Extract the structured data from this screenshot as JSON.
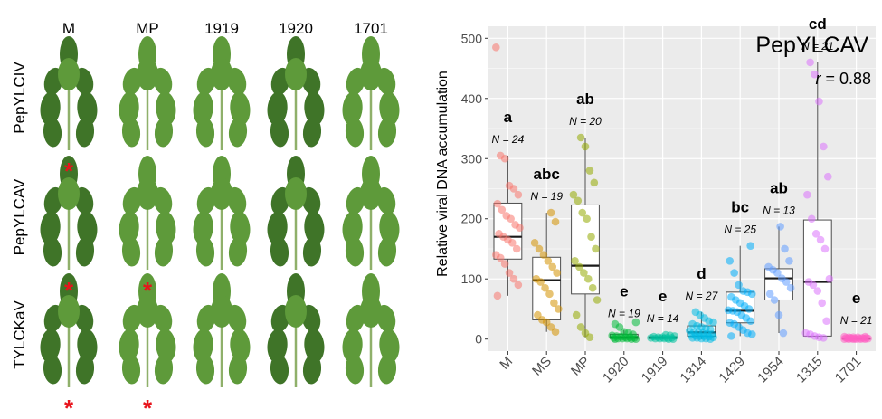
{
  "leaf_panel": {
    "column_labels": [
      "M",
      "MP",
      "1919",
      "1920",
      "1701"
    ],
    "row_labels": [
      "PepYLCIV",
      "PepYLCAV",
      "TYLCKaV"
    ],
    "symptom_marker": "*",
    "symptom_marks": [
      {
        "row": 0,
        "col": 0
      },
      {
        "row": 1,
        "col": 0
      },
      {
        "row": 1,
        "col": 1
      },
      {
        "row": 2,
        "col": 0
      },
      {
        "row": 2,
        "col": 1
      }
    ],
    "colors": {
      "leaf": "#5e9a3a",
      "leaf_dark": "#3f7428",
      "stem": "#8fb06a",
      "marker": "#e8141c"
    }
  },
  "chart_data": {
    "type": "box",
    "title": "PepYLCAV",
    "annotation": "r = 0.88",
    "annotation_var": "r",
    "annotation_rest": " = 0.88",
    "ylabel": "Relative viral DNA accumulation",
    "xlabel": "",
    "ylim": [
      -20,
      520
    ],
    "yticks": [
      0,
      100,
      200,
      300,
      400,
      500
    ],
    "grid": true,
    "background": "#ebebeb",
    "groups": [
      {
        "label": "M",
        "color": "#f8766d",
        "letter": "a",
        "n": "N = 24",
        "stats": {
          "min": 72,
          "q1": 133,
          "median": 170,
          "q3": 226,
          "max": 305
        },
        "points": [
          485,
          305,
          300,
          255,
          250,
          240,
          225,
          215,
          205,
          200,
          190,
          185,
          175,
          170,
          165,
          160,
          150,
          140,
          135,
          125,
          110,
          100,
          90,
          72
        ]
      },
      {
        "label": "MS",
        "color": "#d39200",
        "letter": "abc",
        "n": "N = 19",
        "stats": {
          "min": 12,
          "q1": 32,
          "median": 98,
          "q3": 136,
          "max": 210
        },
        "points": [
          210,
          195,
          160,
          150,
          140,
          130,
          120,
          110,
          100,
          95,
          85,
          75,
          60,
          50,
          40,
          32,
          28,
          20,
          12
        ]
      },
      {
        "label": "MP",
        "color": "#93aa00",
        "letter": "ab",
        "n": "N = 20",
        "stats": {
          "min": 3,
          "q1": 75,
          "median": 122,
          "q3": 223,
          "max": 335
        },
        "points": [
          335,
          320,
          280,
          260,
          240,
          230,
          210,
          200,
          170,
          150,
          130,
          120,
          110,
          100,
          85,
          65,
          40,
          20,
          10,
          3
        ]
      },
      {
        "label": "1920",
        "color": "#00ba38",
        "letter": "e",
        "n": "N = 19",
        "stats": {
          "min": 0,
          "q1": 1,
          "median": 3,
          "q3": 8,
          "max": 15
        },
        "points": [
          28,
          25,
          20,
          12,
          10,
          8,
          6,
          5,
          4,
          3,
          3,
          2,
          2,
          1,
          1,
          1,
          0,
          0,
          0
        ]
      },
      {
        "label": "1919",
        "color": "#00c19f",
        "letter": "e",
        "n": "N = 14",
        "stats": {
          "min": 0,
          "q1": 1,
          "median": 2,
          "q3": 4,
          "max": 7
        },
        "points": [
          7,
          6,
          5,
          4,
          3,
          3,
          2,
          2,
          2,
          1,
          1,
          1,
          0,
          0
        ]
      },
      {
        "label": "1314",
        "color": "#00b9e3",
        "letter": "d",
        "n": "N = 27",
        "stats": {
          "min": 0,
          "q1": 5,
          "median": 11,
          "q3": 22,
          "max": 45
        },
        "points": [
          45,
          40,
          35,
          30,
          28,
          25,
          22,
          20,
          18,
          16,
          14,
          12,
          11,
          10,
          9,
          8,
          7,
          6,
          5,
          5,
          4,
          3,
          2,
          2,
          1,
          1,
          0
        ]
      },
      {
        "label": "1429",
        "color": "#00adfa",
        "letter": "bc",
        "n": "N = 25",
        "stats": {
          "min": 5,
          "q1": 27,
          "median": 47,
          "q3": 78,
          "max": 155
        },
        "points": [
          155,
          130,
          110,
          90,
          80,
          78,
          75,
          70,
          65,
          60,
          55,
          50,
          48,
          47,
          45,
          40,
          35,
          30,
          27,
          25,
          20,
          15,
          10,
          8,
          5
        ]
      },
      {
        "label": "1954",
        "color": "#619cff",
        "letter": "ab",
        "n": "N = 13",
        "stats": {
          "min": 10,
          "q1": 65,
          "median": 101,
          "q3": 117,
          "max": 187
        },
        "points": [
          187,
          150,
          130,
          120,
          115,
          110,
          101,
          95,
          85,
          75,
          65,
          40,
          10
        ]
      },
      {
        "label": "1315",
        "color": "#db72fb",
        "letter": "cd",
        "n": "N = 21",
        "stats": {
          "min": 0,
          "q1": 5,
          "median": 95,
          "q3": 198,
          "max": 460
        },
        "points": [
          460,
          440,
          395,
          320,
          270,
          240,
          200,
          175,
          165,
          150,
          100,
          95,
          90,
          80,
          60,
          30,
          10,
          8,
          5,
          3,
          2
        ]
      },
      {
        "label": "1701",
        "color": "#ff61c3",
        "letter": "e",
        "n": "N = 21",
        "stats": {
          "min": 0,
          "q1": 0,
          "median": 1,
          "q3": 2,
          "max": 4
        },
        "points": [
          4,
          4,
          3,
          3,
          3,
          2,
          2,
          2,
          2,
          1,
          1,
          1,
          1,
          1,
          1,
          0,
          0,
          0,
          0,
          0,
          0
        ]
      }
    ]
  }
}
